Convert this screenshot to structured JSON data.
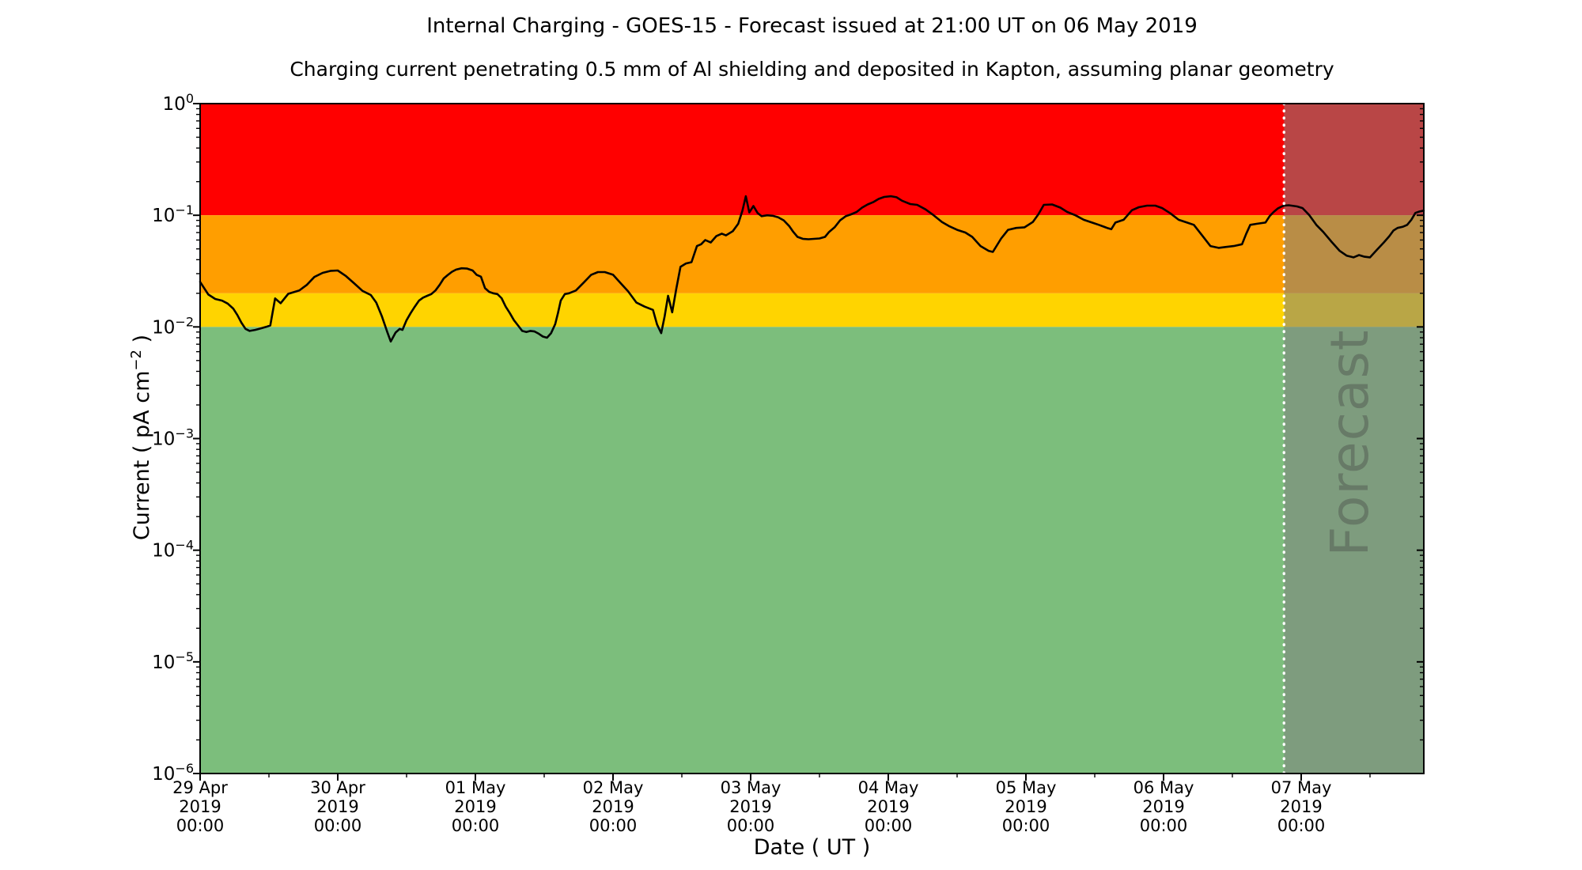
{
  "title": "Internal Charging - GOES-15 - Forecast issued at 21:00 UT on 06 May 2019",
  "subtitle": "Charging current penetrating 0.5 mm of Al shielding and deposited in Kapton, assuming planar geometry",
  "chart_data": {
    "type": "line",
    "title": "Internal Charging - GOES-15 - Forecast issued at 21:00 UT on 06 May 2019",
    "subtitle": "Charging current penetrating 0.5 mm of Al shielding and deposited in Kapton, assuming planar geometry",
    "xlabel": "Date ( UT )",
    "ylabel": {
      "prefix": "Current ( pA cm",
      "sup": "−2",
      "suffix": " )"
    },
    "y_scale": "log",
    "ylim": [
      1e-06,
      1
    ],
    "y_tick_exponents": [
      0,
      -1,
      -2,
      -3,
      -4,
      -5,
      -6
    ],
    "x_axis": {
      "start_day": 0,
      "end_day": 8.89,
      "major_tick_days": [
        0,
        1,
        2,
        3,
        4,
        5,
        6,
        7,
        8
      ],
      "minor_tick_interval_days": 0.5,
      "tick_labels": [
        {
          "day": 0,
          "lines": [
            "29 Apr",
            "2019",
            "00:00"
          ]
        },
        {
          "day": 1,
          "lines": [
            "30 Apr",
            "2019",
            "00:00"
          ]
        },
        {
          "day": 2,
          "lines": [
            "01 May",
            "2019",
            "00:00"
          ]
        },
        {
          "day": 3,
          "lines": [
            "02 May",
            "2019",
            "00:00"
          ]
        },
        {
          "day": 4,
          "lines": [
            "03 May",
            "2019",
            "00:00"
          ]
        },
        {
          "day": 5,
          "lines": [
            "04 May",
            "2019",
            "00:00"
          ]
        },
        {
          "day": 6,
          "lines": [
            "05 May",
            "2019",
            "00:00"
          ]
        },
        {
          "day": 7,
          "lines": [
            "06 May",
            "2019",
            "00:00"
          ]
        },
        {
          "day": 8,
          "lines": [
            "07 May",
            "2019",
            "00:00"
          ]
        }
      ]
    },
    "bands": [
      {
        "name": "red-band",
        "value_from": 0.1,
        "value_to": 1.0,
        "color": "#ff0000"
      },
      {
        "name": "orange-band",
        "value_from": 0.02,
        "value_to": 0.1,
        "color": "#ff9e00"
      },
      {
        "name": "gold-band",
        "value_from": 0.01,
        "value_to": 0.02,
        "color": "#ffd400"
      },
      {
        "name": "green-band",
        "value_from": 1e-06,
        "value_to": 0.01,
        "color": "#7cbe7c"
      }
    ],
    "forecast": {
      "label": "Forecast",
      "start_day": 7.875,
      "end_day": 8.89,
      "overlay_color": "rgba(128,128,128,0.55)",
      "divider_color": "#ffffff",
      "divider_style": "dotted"
    },
    "series": [
      {
        "name": "charging-current",
        "color": "#000000",
        "width": 2.6,
        "points": [
          [
            0.0,
            0.0253
          ],
          [
            0.06,
            0.0195
          ],
          [
            0.11,
            0.0178
          ],
          [
            0.16,
            0.0172
          ],
          [
            0.2,
            0.0162
          ],
          [
            0.24,
            0.0146
          ],
          [
            0.27,
            0.0128
          ],
          [
            0.3,
            0.0109
          ],
          [
            0.33,
            0.0096
          ],
          [
            0.36,
            0.0092
          ],
          [
            0.4,
            0.0094
          ],
          [
            0.44,
            0.0097
          ],
          [
            0.48,
            0.01
          ],
          [
            0.51,
            0.0103
          ],
          [
            0.545,
            0.018
          ],
          [
            0.585,
            0.0163
          ],
          [
            0.64,
            0.0198
          ],
          [
            0.72,
            0.0212
          ],
          [
            0.775,
            0.0238
          ],
          [
            0.83,
            0.028
          ],
          [
            0.89,
            0.0305
          ],
          [
            0.95,
            0.0318
          ],
          [
            1.0,
            0.032
          ],
          [
            1.06,
            0.0285
          ],
          [
            1.12,
            0.0245
          ],
          [
            1.18,
            0.021
          ],
          [
            1.24,
            0.0193
          ],
          [
            1.28,
            0.0165
          ],
          [
            1.32,
            0.0125
          ],
          [
            1.36,
            0.009
          ],
          [
            1.385,
            0.0074
          ],
          [
            1.42,
            0.0089
          ],
          [
            1.45,
            0.0096
          ],
          [
            1.47,
            0.0094
          ],
          [
            1.5,
            0.0115
          ],
          [
            1.53,
            0.0133
          ],
          [
            1.56,
            0.0152
          ],
          [
            1.59,
            0.0172
          ],
          [
            1.62,
            0.0183
          ],
          [
            1.65,
            0.019
          ],
          [
            1.68,
            0.0197
          ],
          [
            1.71,
            0.0212
          ],
          [
            1.74,
            0.0238
          ],
          [
            1.77,
            0.0272
          ],
          [
            1.8,
            0.0292
          ],
          [
            1.83,
            0.0312
          ],
          [
            1.86,
            0.0326
          ],
          [
            1.9,
            0.0335
          ],
          [
            1.94,
            0.0333
          ],
          [
            1.98,
            0.032
          ],
          [
            2.01,
            0.0292
          ],
          [
            2.04,
            0.0282
          ],
          [
            2.07,
            0.0222
          ],
          [
            2.1,
            0.0206
          ],
          [
            2.13,
            0.02
          ],
          [
            2.16,
            0.0197
          ],
          [
            2.19,
            0.0181
          ],
          [
            2.22,
            0.0152
          ],
          [
            2.25,
            0.0133
          ],
          [
            2.28,
            0.0115
          ],
          [
            2.31,
            0.0103
          ],
          [
            2.34,
            0.0092
          ],
          [
            2.37,
            0.009
          ],
          [
            2.4,
            0.0092
          ],
          [
            2.43,
            0.0091
          ],
          [
            2.46,
            0.0087
          ],
          [
            2.49,
            0.0082
          ],
          [
            2.52,
            0.008
          ],
          [
            2.55,
            0.0088
          ],
          [
            2.58,
            0.0106
          ],
          [
            2.6,
            0.0133
          ],
          [
            2.62,
            0.0172
          ],
          [
            2.65,
            0.0197
          ],
          [
            2.68,
            0.02
          ],
          [
            2.73,
            0.0212
          ],
          [
            2.79,
            0.0252
          ],
          [
            2.84,
            0.0292
          ],
          [
            2.89,
            0.031
          ],
          [
            2.94,
            0.031
          ],
          [
            3.0,
            0.0293
          ],
          [
            3.06,
            0.0243
          ],
          [
            3.11,
            0.0208
          ],
          [
            3.17,
            0.0165
          ],
          [
            3.23,
            0.0152
          ],
          [
            3.29,
            0.0142
          ],
          [
            3.32,
            0.0105
          ],
          [
            3.35,
            0.0088
          ],
          [
            3.375,
            0.0125
          ],
          [
            3.4,
            0.019
          ],
          [
            3.43,
            0.0135
          ],
          [
            3.46,
            0.022
          ],
          [
            3.49,
            0.0345
          ],
          [
            3.53,
            0.037
          ],
          [
            3.57,
            0.038
          ],
          [
            3.61,
            0.053
          ],
          [
            3.64,
            0.055
          ],
          [
            3.67,
            0.06
          ],
          [
            3.71,
            0.057
          ],
          [
            3.75,
            0.065
          ],
          [
            3.79,
            0.0685
          ],
          [
            3.82,
            0.066
          ],
          [
            3.87,
            0.072
          ],
          [
            3.91,
            0.084
          ],
          [
            3.94,
            0.11
          ],
          [
            3.965,
            0.148
          ],
          [
            3.99,
            0.106
          ],
          [
            4.02,
            0.121
          ],
          [
            4.05,
            0.105
          ],
          [
            4.08,
            0.098
          ],
          [
            4.12,
            0.1
          ],
          [
            4.16,
            0.099
          ],
          [
            4.2,
            0.096
          ],
          [
            4.24,
            0.09
          ],
          [
            4.28,
            0.08
          ],
          [
            4.31,
            0.071
          ],
          [
            4.34,
            0.064
          ],
          [
            4.38,
            0.0615
          ],
          [
            4.42,
            0.061
          ],
          [
            4.46,
            0.0615
          ],
          [
            4.5,
            0.062
          ],
          [
            4.54,
            0.064
          ],
          [
            4.57,
            0.071
          ],
          [
            4.61,
            0.078
          ],
          [
            4.65,
            0.09
          ],
          [
            4.69,
            0.098
          ],
          [
            4.73,
            0.102
          ],
          [
            4.77,
            0.107
          ],
          [
            4.81,
            0.117
          ],
          [
            4.85,
            0.125
          ],
          [
            4.89,
            0.131
          ],
          [
            4.93,
            0.14
          ],
          [
            4.97,
            0.146
          ],
          [
            5.02,
            0.148
          ],
          [
            5.06,
            0.145
          ],
          [
            5.1,
            0.135
          ],
          [
            5.16,
            0.126
          ],
          [
            5.21,
            0.124
          ],
          [
            5.27,
            0.113
          ],
          [
            5.33,
            0.1
          ],
          [
            5.39,
            0.087
          ],
          [
            5.44,
            0.08
          ],
          [
            5.5,
            0.074
          ],
          [
            5.56,
            0.07
          ],
          [
            5.61,
            0.064
          ],
          [
            5.67,
            0.053
          ],
          [
            5.73,
            0.048
          ],
          [
            5.76,
            0.047
          ],
          [
            5.82,
            0.062
          ],
          [
            5.87,
            0.074
          ],
          [
            5.93,
            0.077
          ],
          [
            5.99,
            0.078
          ],
          [
            6.05,
            0.087
          ],
          [
            6.09,
            0.102
          ],
          [
            6.13,
            0.124
          ],
          [
            6.19,
            0.125
          ],
          [
            6.25,
            0.117
          ],
          [
            6.3,
            0.107
          ],
          [
            6.36,
            0.1
          ],
          [
            6.42,
            0.091
          ],
          [
            6.48,
            0.086
          ],
          [
            6.53,
            0.082
          ],
          [
            6.59,
            0.077
          ],
          [
            6.62,
            0.075
          ],
          [
            6.65,
            0.086
          ],
          [
            6.71,
            0.091
          ],
          [
            6.77,
            0.111
          ],
          [
            6.82,
            0.118
          ],
          [
            6.88,
            0.122
          ],
          [
            6.94,
            0.122
          ],
          [
            6.99,
            0.116
          ],
          [
            7.05,
            0.104
          ],
          [
            7.11,
            0.091
          ],
          [
            7.17,
            0.086
          ],
          [
            7.22,
            0.082
          ],
          [
            7.28,
            0.066
          ],
          [
            7.34,
            0.053
          ],
          [
            7.4,
            0.051
          ],
          [
            7.45,
            0.052
          ],
          [
            7.51,
            0.053
          ],
          [
            7.57,
            0.055
          ],
          [
            7.6,
            0.068
          ],
          [
            7.63,
            0.082
          ],
          [
            7.68,
            0.084
          ],
          [
            7.74,
            0.086
          ],
          [
            7.77,
            0.098
          ],
          [
            7.8,
            0.107
          ],
          [
            7.83,
            0.115
          ],
          [
            7.86,
            0.12
          ],
          [
            7.875,
            0.122
          ],
          [
            7.91,
            0.123
          ],
          [
            7.97,
            0.12
          ],
          [
            8.01,
            0.116
          ],
          [
            8.06,
            0.1
          ],
          [
            8.11,
            0.082
          ],
          [
            8.16,
            0.071
          ],
          [
            8.22,
            0.058
          ],
          [
            8.28,
            0.048
          ],
          [
            8.33,
            0.0435
          ],
          [
            8.38,
            0.042
          ],
          [
            8.42,
            0.044
          ],
          [
            8.46,
            0.0425
          ],
          [
            8.5,
            0.042
          ],
          [
            8.55,
            0.049
          ],
          [
            8.6,
            0.057
          ],
          [
            8.64,
            0.065
          ],
          [
            8.67,
            0.073
          ],
          [
            8.7,
            0.077
          ],
          [
            8.74,
            0.079
          ],
          [
            8.77,
            0.082
          ],
          [
            8.8,
            0.091
          ],
          [
            8.83,
            0.105
          ],
          [
            8.86,
            0.108
          ],
          [
            8.89,
            0.11
          ]
        ]
      }
    ],
    "layout": {
      "grid": false,
      "legend": "none"
    }
  }
}
